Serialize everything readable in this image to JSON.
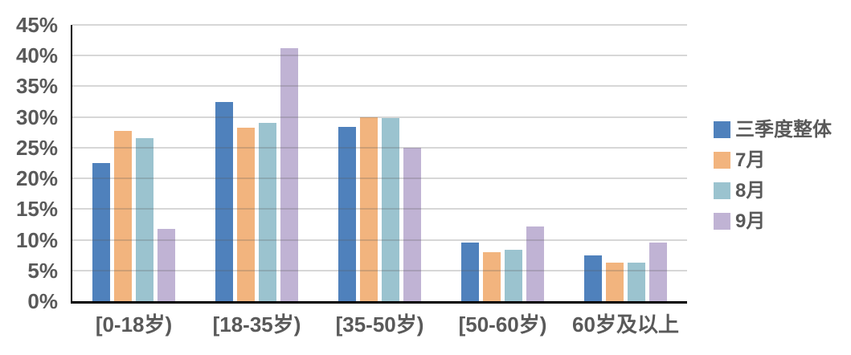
{
  "chart_data": {
    "type": "bar",
    "title": "",
    "categories": [
      "[0-18岁)",
      "[18-35岁)",
      "[35-50岁)",
      "[50-60岁)",
      "60岁及以上"
    ],
    "series": [
      {
        "name": "三季度整体",
        "color": "#4F81BC",
        "values": [
          22.5,
          32.4,
          28.4,
          9.5,
          7.4
        ]
      },
      {
        "name": "7月",
        "color": "#F2B47E",
        "values": [
          27.7,
          28.2,
          29.9,
          8.0,
          6.3
        ]
      },
      {
        "name": "8月",
        "color": "#9BC3CF",
        "values": [
          26.6,
          29.0,
          29.8,
          8.4,
          6.3
        ]
      },
      {
        "name": "9月",
        "color": "#C0B3D4",
        "values": [
          11.8,
          41.2,
          25.0,
          12.2,
          9.6
        ]
      }
    ],
    "xlabel": "",
    "ylabel": "",
    "ylim": [
      0,
      45
    ],
    "y_ticks": [
      "45%",
      "40%",
      "35%",
      "30%",
      "25%",
      "20%",
      "15%",
      "10%",
      "5%",
      "0%"
    ],
    "y_tick_values": [
      45,
      40,
      35,
      30,
      25,
      20,
      15,
      10,
      5,
      0
    ],
    "grid": true,
    "legend_position": "right"
  },
  "colors": {
    "axis_text": "#595959",
    "gridline": "#D9D9D9",
    "axis_line": "#000000",
    "background": "#FFFFFF"
  }
}
